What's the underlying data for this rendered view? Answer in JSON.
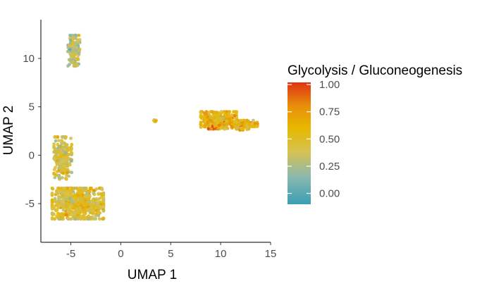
{
  "chart_data": {
    "type": "scatter",
    "xlabel": "UMAP 1",
    "ylabel": "UMAP 2",
    "xlim": [
      -8,
      15
    ],
    "ylim": [
      -9,
      14
    ],
    "x_ticks": [
      "-5",
      "0",
      "5",
      "10",
      "15"
    ],
    "x_tick_values": [
      -5,
      0,
      5,
      10,
      15
    ],
    "y_ticks": [
      "-5",
      "0",
      "5",
      "10"
    ],
    "y_tick_values": [
      -5,
      0,
      5,
      10
    ],
    "grid": false,
    "legend": {
      "title": "Glycolysis / Gluconeogenesis",
      "placement": "right",
      "labels": [
        "1.00",
        "0.75",
        "0.50",
        "0.25",
        "0.00"
      ],
      "values": [
        1.0,
        0.75,
        0.5,
        0.25,
        0.0
      ],
      "range": [
        -0.1,
        1.02
      ]
    },
    "colorscale": [
      {
        "value": -0.1,
        "color": "#3a9fb3"
      },
      {
        "value": 0.15,
        "color": "#8ab7b0"
      },
      {
        "value": 0.38,
        "color": "#d6c254"
      },
      {
        "value": 0.6,
        "color": "#e6b800"
      },
      {
        "value": 0.8,
        "color": "#e8900a"
      },
      {
        "value": 1.02,
        "color": "#e03414"
      }
    ],
    "clusters": [
      {
        "name": "",
        "center": [
          -4.7,
          10.8
        ],
        "spread": [
          0.6,
          1.6
        ],
        "n": 150,
        "mean_score": 0.3
      },
      {
        "name": "",
        "center": [
          -4.3,
          -5.0
        ],
        "spread": [
          2.6,
          1.6
        ],
        "n": 650,
        "mean_score": 0.48
      },
      {
        "name": "",
        "center": [
          -5.8,
          -0.3
        ],
        "spread": [
          0.9,
          2.2
        ],
        "n": 230,
        "mean_score": 0.42
      },
      {
        "name": "",
        "center": [
          9.8,
          3.6
        ],
        "spread": [
          1.8,
          0.9
        ],
        "n": 330,
        "mean_score": 0.62
      },
      {
        "name": "",
        "center": [
          12.4,
          3.1
        ],
        "spread": [
          1.3,
          0.5
        ],
        "n": 120,
        "mean_score": 0.6
      },
      {
        "name": "",
        "center": [
          3.4,
          3.5
        ],
        "spread": [
          0.15,
          0.15
        ],
        "n": 5,
        "mean_score": 0.55
      }
    ]
  }
}
